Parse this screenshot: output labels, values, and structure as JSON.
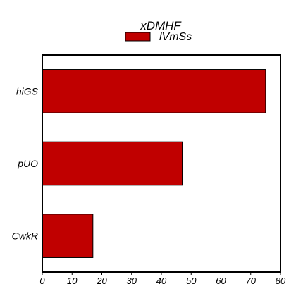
{
  "chart_data": {
    "type": "bar",
    "orientation": "horizontal",
    "title": "xDMHF",
    "xlabel": "",
    "ylabel": "",
    "categories": [
      "hiGS",
      "pUO",
      "CwkR"
    ],
    "series": [
      {
        "name": "lVmSs",
        "values": [
          75,
          47,
          17
        ],
        "color": "#c00000"
      }
    ],
    "xlim": [
      0,
      80
    ],
    "xticks": [
      "0",
      "10",
      "20",
      "30",
      "40",
      "50",
      "60",
      "70",
      "80"
    ],
    "grid": false,
    "legend_position": "top-center"
  }
}
